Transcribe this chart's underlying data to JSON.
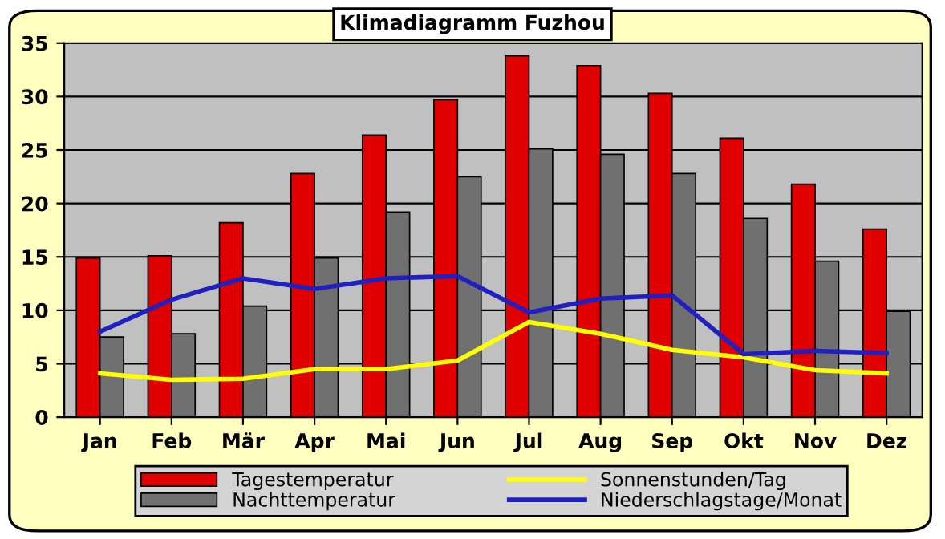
{
  "chart_data": {
    "type": "bar",
    "title": "Klimadiagramm Fuzhou",
    "categories": [
      "Jan",
      "Feb",
      "Mär",
      "Apr",
      "Mai",
      "Jun",
      "Jul",
      "Aug",
      "Sep",
      "Okt",
      "Nov",
      "Dez"
    ],
    "series": [
      {
        "name": "Tagestemperatur",
        "color": "#e00000",
        "values": [
          14.9,
          15.1,
          18.2,
          22.8,
          26.4,
          29.7,
          33.8,
          32.9,
          30.3,
          26.1,
          21.8,
          17.6
        ]
      },
      {
        "name": "Nachttemperatur",
        "color": "#707070",
        "values": [
          7.5,
          7.8,
          10.4,
          14.9,
          19.2,
          22.5,
          25.1,
          24.6,
          22.8,
          18.6,
          14.6,
          9.9
        ]
      },
      {
        "name": "Sonnenstunden/Tag",
        "color": "#ffff00",
        "type": "line",
        "values": [
          4.1,
          3.5,
          3.6,
          4.5,
          4.5,
          5.3,
          8.9,
          7.8,
          6.3,
          5.6,
          4.4,
          4.1
        ]
      },
      {
        "name": "Niederschlagstage/Monat",
        "color": "#2020c0",
        "type": "line",
        "values": [
          8,
          11,
          13,
          12,
          13,
          13.2,
          9.8,
          11.1,
          11.4,
          5.9,
          6.2,
          6
        ]
      }
    ],
    "ylim": [
      0,
      35
    ],
    "yticks": [
      0,
      5,
      10,
      15,
      20,
      25,
      30,
      35
    ],
    "grid": "y",
    "legend": "bottom",
    "marker": "none",
    "line_style": "solid"
  }
}
